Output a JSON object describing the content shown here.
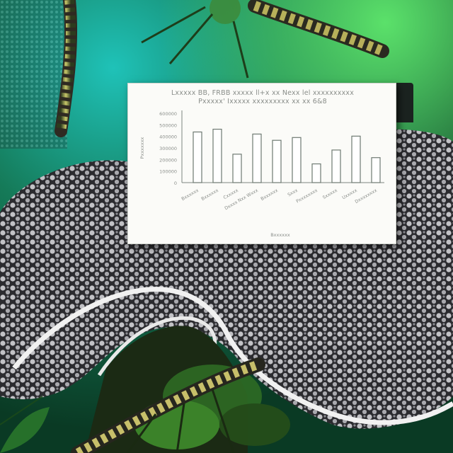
{
  "figure": {
    "description_hidden": "",
    "title_line1": "Lxxxxx BB, FRBB xxxxx ll+x xx Nexx lel xxxxxxxxxx",
    "title_line2": "Pxxxxx' Ixxxxx xxxxxxxxx xx xx 6&8"
  },
  "chart_data": {
    "type": "bar",
    "title": "Lxxxxx BB, FRBB xxxxx ll+x xx Nexx lel xxxxxxxxxx / Pxxxxx' Ixxxxx xxxxxxxxx xx xx 6&8",
    "categories": [
      "Bxxxxxx",
      "Bxxxxxx",
      "Cxxxxx",
      "Dxxxx Nxx Wxxx",
      "Bxxxxxx",
      "Sxxx",
      "Pxxxxxxxx",
      "Sxxxxx",
      "Uxxxxx",
      "Dxxxxxxxx"
    ],
    "values": [
      73,
      77,
      41,
      70,
      61,
      65,
      27,
      47,
      67,
      36
    ],
    "ylim": [
      0,
      100
    ],
    "yticks": [
      "0",
      "100000",
      "200000",
      "300000",
      "400000",
      "500000",
      "600000"
    ],
    "ylabel": "Pxxxxxxx",
    "xlabel": "Bxxxxxx",
    "grid": false,
    "bar_fill": "#ffffff",
    "bar_stroke": "#6f7a72"
  },
  "colors": {
    "panel": "#fbfbf8",
    "axis": "#7d857f",
    "text": "#8a8e8a",
    "bg_teal": "#1aa7a0",
    "bg_green": "#1f8a3a",
    "creature_dark": "#2c2c30",
    "creature_dots": "#b9b9bd"
  }
}
